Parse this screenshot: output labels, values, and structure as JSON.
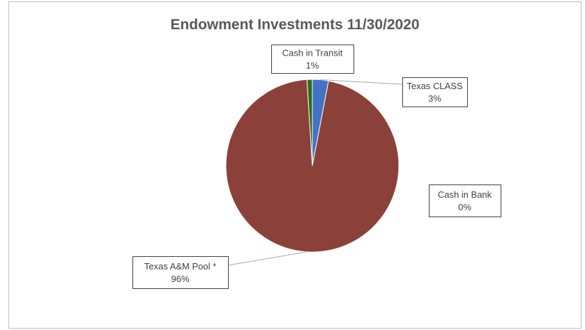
{
  "chart_data": {
    "type": "pie",
    "title": "Endowment Investments 11/30/2020",
    "slices": [
      {
        "name": "Texas CLASS",
        "value": 3,
        "label": "3%",
        "color": "#4472c4"
      },
      {
        "name": "Cash in Bank",
        "value": 0,
        "label": "0%",
        "color": "#a5a5a5"
      },
      {
        "name": "Texas A&M Pool *",
        "value": 96,
        "label": "96%",
        "color": "#8b4139"
      },
      {
        "name": "Cash in Transit",
        "value": 1,
        "label": "1%",
        "color": "#2e6b1f"
      }
    ]
  }
}
